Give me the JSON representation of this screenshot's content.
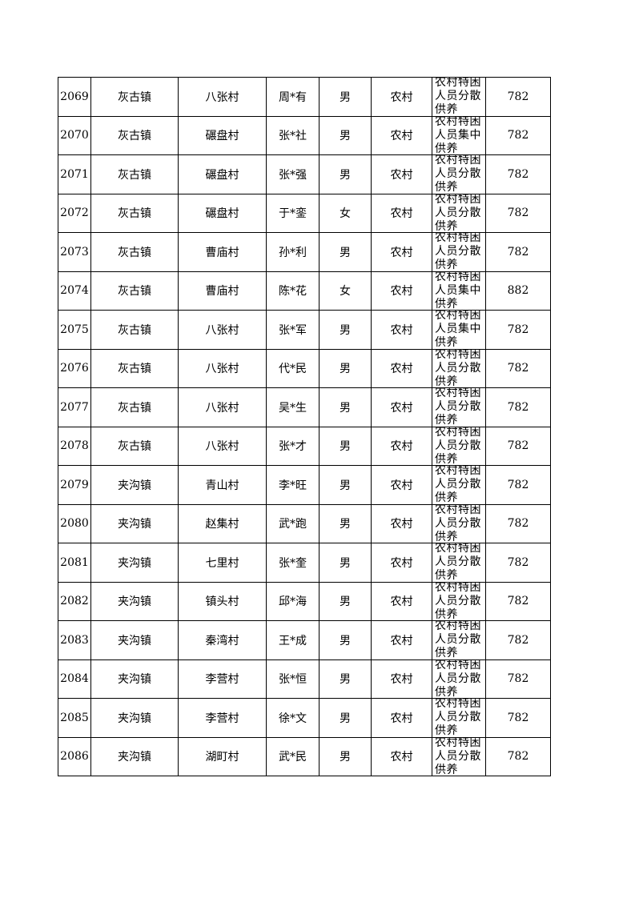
{
  "rows": [
    [
      "2069",
      "灰古镇",
      "八张村",
      "周*有",
      "男",
      "农村",
      "农村特困人员分散供养",
      "782"
    ],
    [
      "2070",
      "灰古镇",
      "碾盘村",
      "张*社",
      "男",
      "农村",
      "农村特困人员集中供养",
      "782"
    ],
    [
      "2071",
      "灰古镇",
      "碾盘村",
      "张*强",
      "男",
      "农村",
      "农村特困人员分散供养",
      "782"
    ],
    [
      "2072",
      "灰古镇",
      "碾盘村",
      "于*銮",
      "女",
      "农村",
      "农村特困人员分散供养",
      "782"
    ],
    [
      "2073",
      "灰古镇",
      "曹庙村",
      "孙*利",
      "男",
      "农村",
      "农村特困人员分散供养",
      "782"
    ],
    [
      "2074",
      "灰古镇",
      "曹庙村",
      "陈*花",
      "女",
      "农村",
      "农村特困人员集中供养",
      "882"
    ],
    [
      "2075",
      "灰古镇",
      "八张村",
      "张*军",
      "男",
      "农村",
      "农村特困人员集中供养",
      "782"
    ],
    [
      "2076",
      "灰古镇",
      "八张村",
      "代*民",
      "男",
      "农村",
      "农村特困人员分散供养",
      "782"
    ],
    [
      "2077",
      "灰古镇",
      "八张村",
      "吴*生",
      "男",
      "农村",
      "农村特困人员分散供养",
      "782"
    ],
    [
      "2078",
      "灰古镇",
      "八张村",
      "张*才",
      "男",
      "农村",
      "农村特困人员分散供养",
      "782"
    ],
    [
      "2079",
      "夹沟镇",
      "青山村",
      "李*旺",
      "男",
      "农村",
      "农村特困人员分散供养",
      "782"
    ],
    [
      "2080",
      "夹沟镇",
      "赵集村",
      "武*跑",
      "男",
      "农村",
      "农村特困人员分散供养",
      "782"
    ],
    [
      "2081",
      "夹沟镇",
      "七里村",
      "张*奎",
      "男",
      "农村",
      "农村特困人员分散供养",
      "782"
    ],
    [
      "2082",
      "夹沟镇",
      "镇头村",
      "邱*海",
      "男",
      "农村",
      "农村特困人员分散供养",
      "782"
    ],
    [
      "2083",
      "夹沟镇",
      "秦湾村",
      "王*成",
      "男",
      "农村",
      "农村特困人员分散供养",
      "782"
    ],
    [
      "2084",
      "夹沟镇",
      "李营村",
      "张*恒",
      "男",
      "农村",
      "农村特困人员分散供养",
      "782"
    ],
    [
      "2085",
      "夹沟镇",
      "李营村",
      "徐*文",
      "男",
      "农村",
      "农村特困人员分散供养",
      "782"
    ],
    [
      "2086",
      "夹沟镇",
      "湖町村",
      "武*民",
      "男",
      "农村",
      "农村特困人员分散供养",
      "782"
    ]
  ]
}
